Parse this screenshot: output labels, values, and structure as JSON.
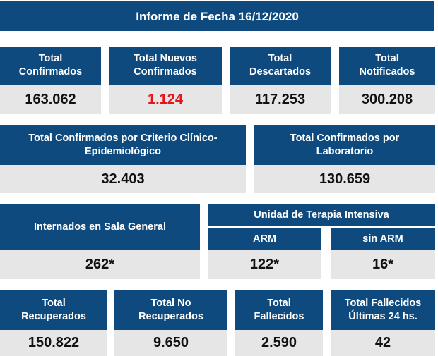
{
  "title": "Informe de Fecha 16/12/2020",
  "row1": [
    {
      "label_line1": "Total",
      "label_line2": "Confirmados",
      "value": "163.062"
    },
    {
      "label_line1": "Total Nuevos",
      "label_line2": "Confirmados",
      "value": "1.124"
    },
    {
      "label_line1": "Total",
      "label_line2": "Descartados",
      "value": "117.253"
    },
    {
      "label_line1": "Total",
      "label_line2": "Notificados",
      "value": "300.208"
    }
  ],
  "row2": [
    {
      "label_line1": "Total Confirmados por Criterio Clínico-",
      "label_line2": "Epidemiológico",
      "value": "32.403"
    },
    {
      "label_line1": "Total Confirmados por",
      "label_line2": "Laboratorio",
      "value": "130.659"
    }
  ],
  "row3": {
    "sala_general": {
      "label": "Internados en Sala General",
      "value": "262*"
    },
    "uti": {
      "label": "Unidad de Terapia Intensiva",
      "arm": {
        "label": "ARM",
        "value": "122*"
      },
      "sin_arm": {
        "label": "sin ARM",
        "value": "16*"
      }
    }
  },
  "row4": [
    {
      "label_line1": "Total",
      "label_line2": "Recuperados",
      "value": "150.822"
    },
    {
      "label_line1": "Total No",
      "label_line2": "Recuperados",
      "value": "9.650"
    },
    {
      "label_line1": "Total",
      "label_line2": "Fallecidos",
      "value": "2.590"
    },
    {
      "label_line1": "Total Fallecidos",
      "label_line2": "Últimas 24 hs.",
      "value": "42"
    }
  ],
  "colors": {
    "header": "#0f4a7e",
    "value_bg": "#e6e6e6",
    "highlight": "#e8141c"
  }
}
